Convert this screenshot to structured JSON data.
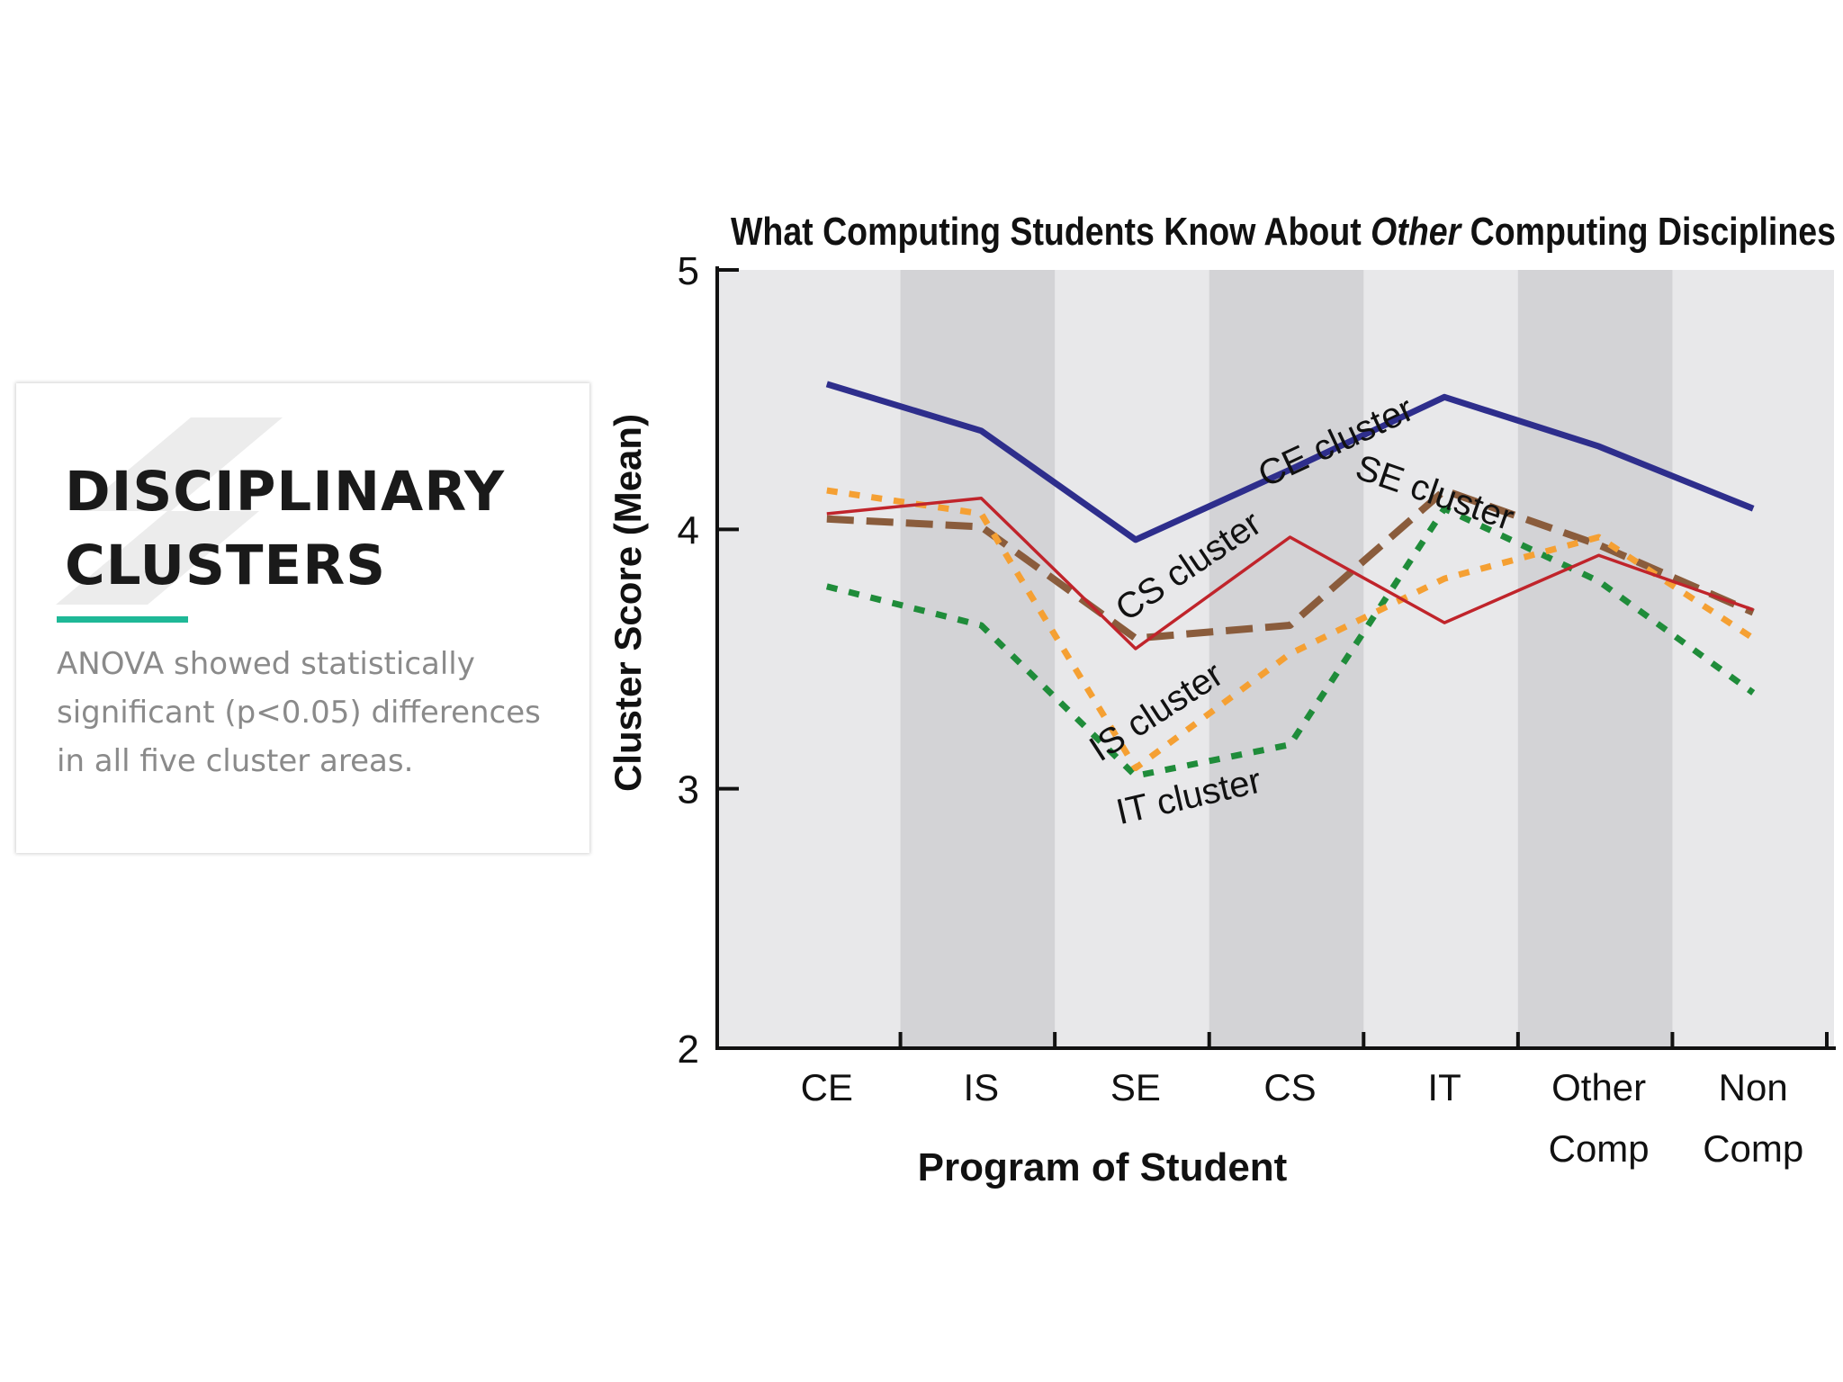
{
  "card": {
    "title_line1": "DISCIPLINARY",
    "title_line2": "CLUSTERS",
    "body": "ANOVA showed statistically significant (p<0.05) differences in all five cluster areas.",
    "accent_color": "#1fb897"
  },
  "chart_data": {
    "type": "line",
    "title": "What Computing Students Know About Other Computing Disciplines",
    "title_parts": [
      "What Computing Students Know About ",
      "Other",
      " Computing Disciplines"
    ],
    "xlabel": "Program of Student",
    "ylabel": "Cluster Score (Mean)",
    "ylim": [
      2,
      5
    ],
    "yticks": [
      2,
      3,
      4,
      5
    ],
    "categories": [
      "CE",
      "IS",
      "SE",
      "CS",
      "IT",
      "Other Comp",
      "Non Comp"
    ],
    "category_lines": [
      [
        "CE"
      ],
      [
        "IS"
      ],
      [
        "SE"
      ],
      [
        "CS"
      ],
      [
        "IT"
      ],
      [
        "Other",
        "Comp"
      ],
      [
        "Non",
        "Comp"
      ]
    ],
    "background_bands": [
      "light",
      "dark",
      "light",
      "dark",
      "light",
      "dark",
      "light"
    ],
    "series": [
      {
        "name": "CE cluster",
        "values": [
          4.56,
          4.38,
          3.96,
          4.23,
          4.51,
          4.32,
          4.08
        ],
        "color": "#2e2e8c",
        "style": "solid-thick"
      },
      {
        "name": "CS cluster",
        "values": [
          4.06,
          4.12,
          3.54,
          3.97,
          3.64,
          3.9,
          3.69
        ],
        "color": "#c0242b",
        "style": "solid-thin"
      },
      {
        "name": "SE cluster",
        "values": [
          4.04,
          4.01,
          3.58,
          3.63,
          4.15,
          3.94,
          3.68
        ],
        "color": "#8a5c3c",
        "style": "dashed"
      },
      {
        "name": "IS cluster",
        "values": [
          4.15,
          4.06,
          3.08,
          3.52,
          3.81,
          3.97,
          3.58
        ],
        "color": "#f5a033",
        "style": "dotted"
      },
      {
        "name": "IT cluster",
        "values": [
          3.78,
          3.63,
          3.05,
          3.17,
          4.08,
          3.8,
          3.37
        ],
        "color": "#1f8c3a",
        "style": "dotted"
      }
    ]
  }
}
